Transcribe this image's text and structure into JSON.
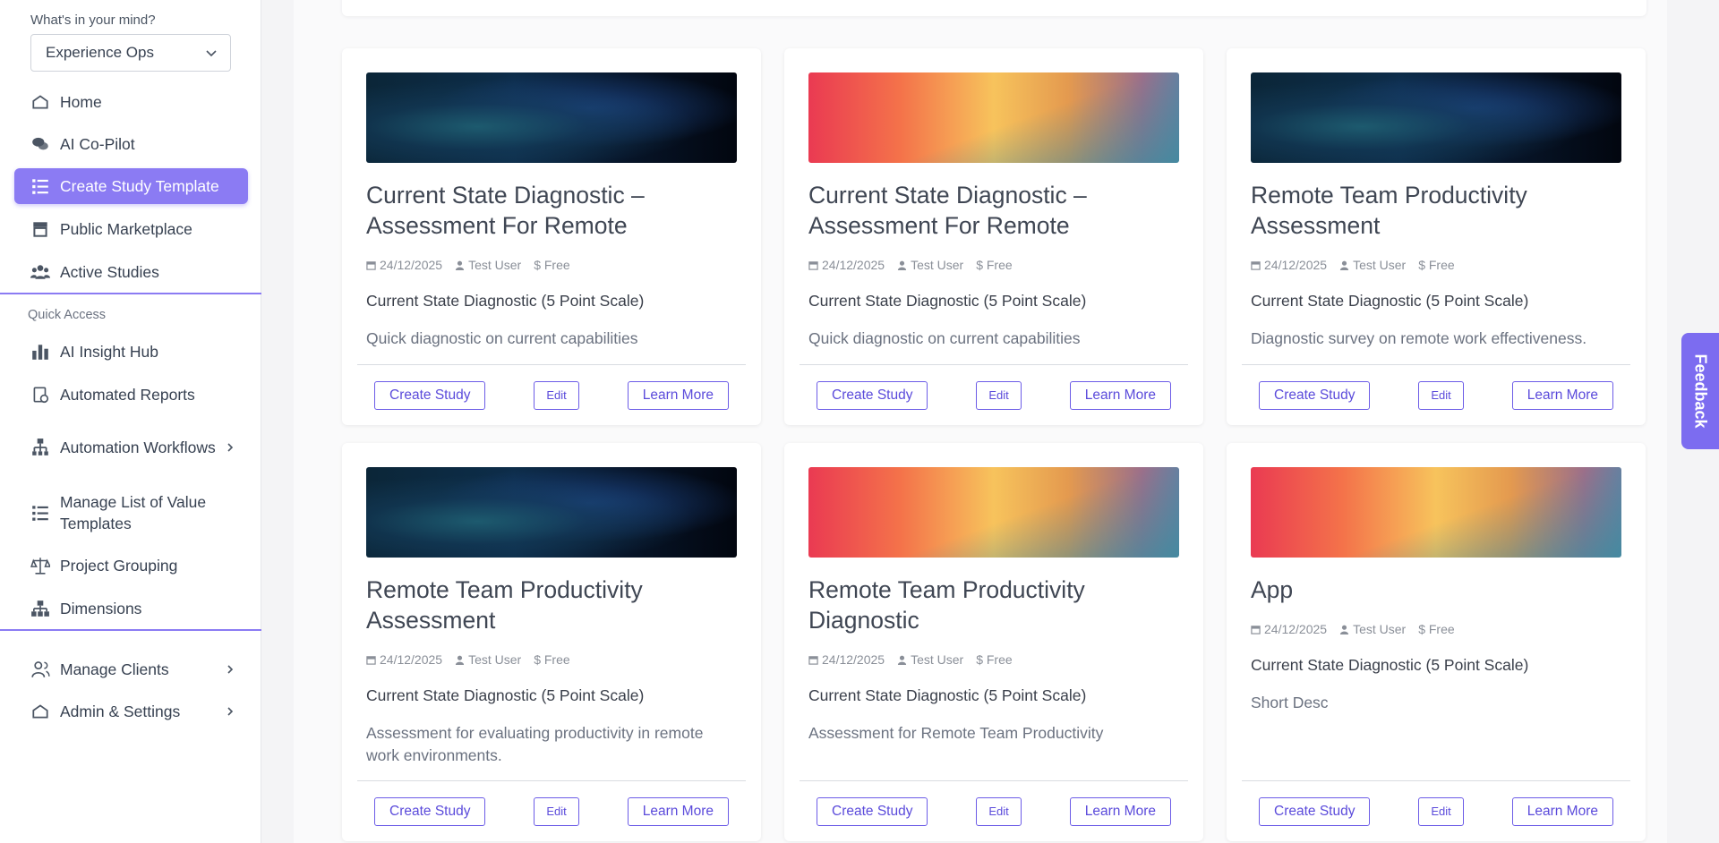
{
  "sidebar": {
    "prompt_label": "What's in your mind?",
    "workspace": "Experience Ops",
    "nav": [
      "Home",
      "AI Co-Pilot",
      "Create Study Template",
      "Public Marketplace",
      "Active Studies"
    ],
    "quick_access_label": "Quick Access",
    "quick_access": [
      "AI Insight Hub",
      "Automated Reports",
      "Automation Workflows",
      "Manage List of Value Templates",
      "Project Grouping",
      "Dimensions"
    ],
    "bottom": [
      "Manage Clients",
      "Admin & Settings"
    ]
  },
  "card_actions": [
    "Create Study",
    "Edit",
    "Learn More"
  ],
  "cards": [
    {
      "title": "Current State Diagnostic – Assessment For Remote",
      "date": "24/12/2025",
      "author": "Test User",
      "price": "$ Free",
      "scale": "Current State Diagnostic (5 Point Scale)",
      "description": "Quick diagnostic on current capabilities"
    },
    {
      "title": "Current State Diagnostic – Assessment For Remote",
      "date": "24/12/2025",
      "author": "Test User",
      "price": "$ Free",
      "scale": "Current State Diagnostic (5 Point Scale)",
      "description": "Quick diagnostic on current capabilities"
    },
    {
      "title": "Remote Team Productivity Assessment",
      "date": "24/12/2025",
      "author": "Test User",
      "price": "$ Free",
      "scale": "Current State Diagnostic (5 Point Scale)",
      "description": "Diagnostic survey on remote work effectiveness."
    },
    {
      "title": "Remote Team Productivity Assessment",
      "date": "24/12/2025",
      "author": "Test User",
      "price": "$ Free",
      "scale": "Current State Diagnostic (5 Point Scale)",
      "description": "Assessment for evaluating productivity in remote work environments."
    },
    {
      "title": "Remote Team Productivity Diagnostic",
      "date": "24/12/2025",
      "author": "Test User",
      "price": "$ Free",
      "scale": "Current State Diagnostic (5 Point Scale)",
      "description": "Assessment for Remote Team Productivity"
    },
    {
      "title": "App",
      "date": "24/12/2025",
      "author": "Test User",
      "price": "$ Free",
      "scale": "Current State Diagnostic (5 Point Scale)",
      "description": "Short Desc"
    }
  ],
  "feedback": "Feedback"
}
